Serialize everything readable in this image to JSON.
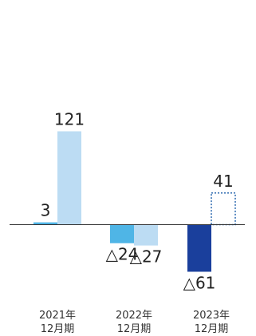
{
  "chart_data": {
    "type": "bar",
    "categories": [
      [
        "2021年",
        "12月期"
      ],
      [
        "2022年",
        "12月期"
      ],
      [
        "2023年",
        "12月期"
      ]
    ],
    "series": [
      {
        "values": [
          3,
          -24,
          -61
        ],
        "labels": [
          "3",
          "△24",
          "△61"
        ],
        "colors": [
          "#4fb5e6",
          "#4fb5e6",
          "#1a3f9c"
        ],
        "style": [
          "solid",
          "solid",
          "solid"
        ]
      },
      {
        "values": [
          121,
          -27,
          41
        ],
        "labels": [
          "121",
          "△27",
          "41"
        ],
        "colors": [
          "#bcdcf3",
          "#bcdcf3",
          "#1a5ca8"
        ],
        "style": [
          "solid",
          "solid",
          "dotted"
        ]
      }
    ],
    "ylim": [
      -70,
      125
    ],
    "grid": false,
    "axis_color": "#333333"
  }
}
